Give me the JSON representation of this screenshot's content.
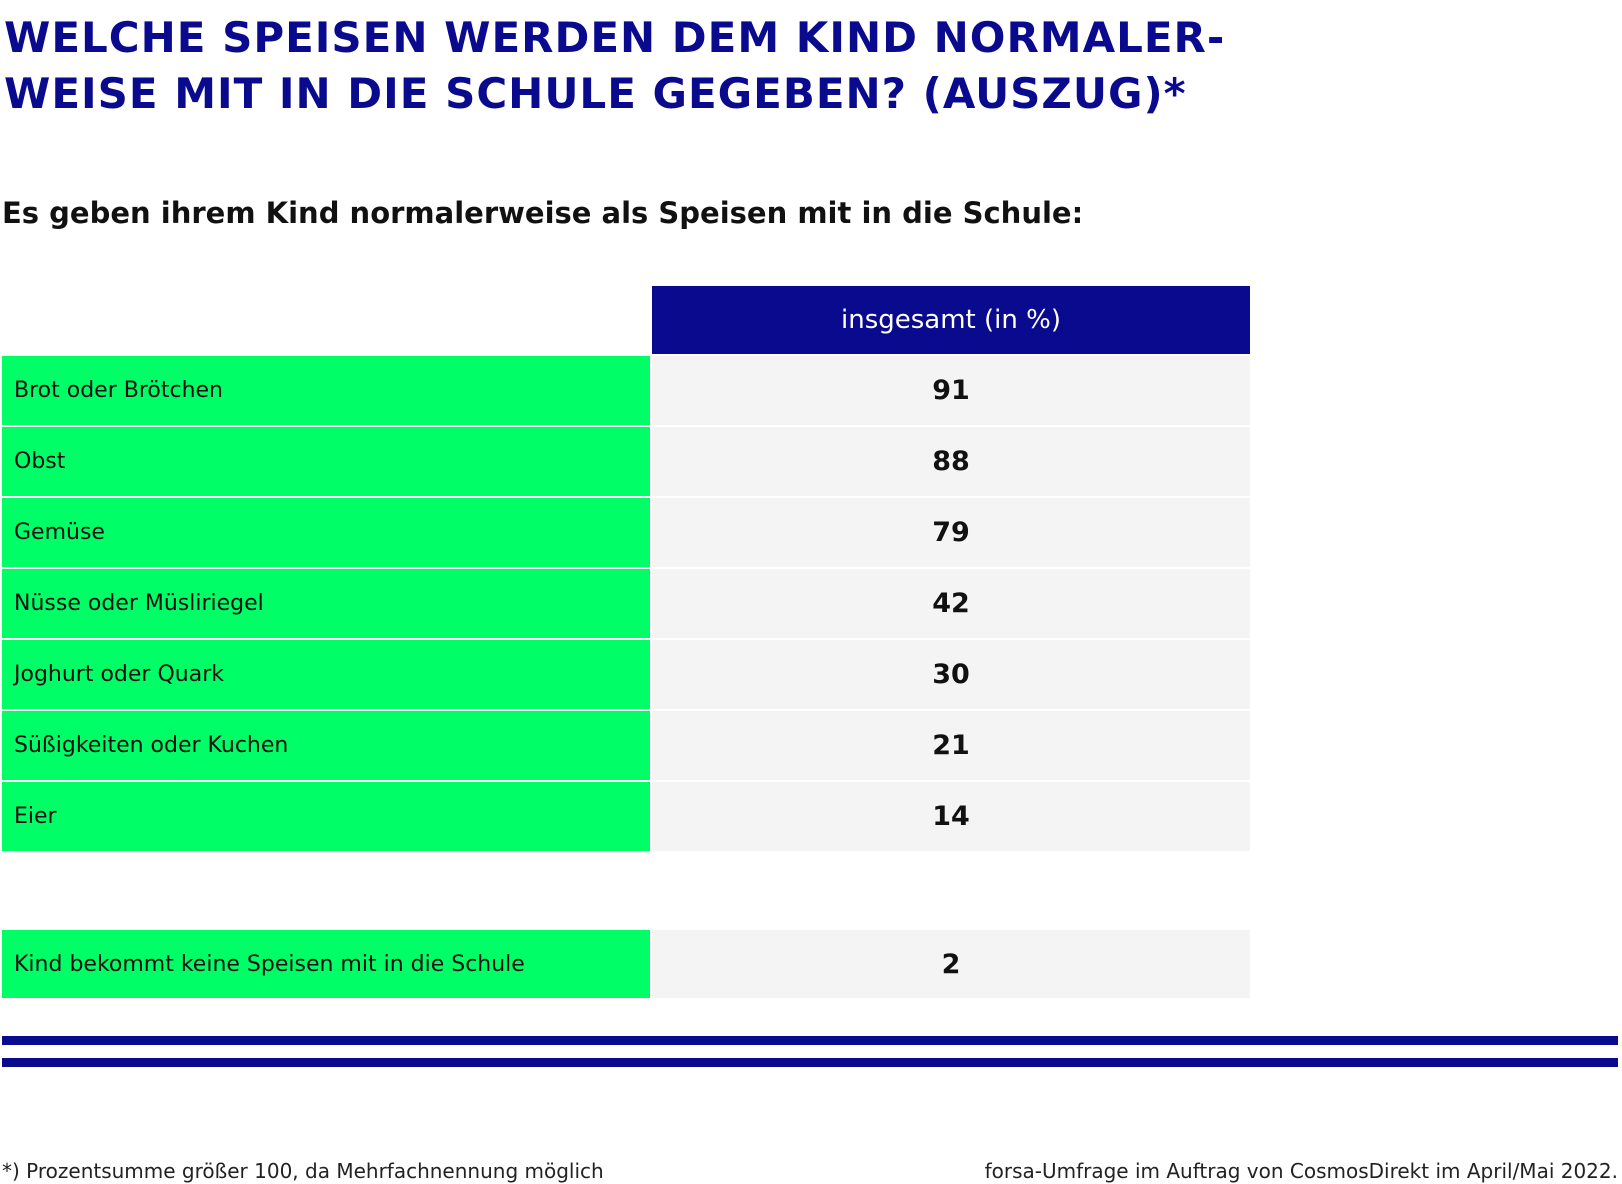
{
  "colors": {
    "title": "#0a0a8e",
    "header_bg": "#0a0a8e",
    "label_bg": "#00ff66",
    "value_bg": "#f4f4f4",
    "rule": "#0a0a8e"
  },
  "title": "WELCHE SPEISEN WERDEN DEM KIND NORMALER-\nWEISE MIT IN DIE SCHULE GEGEBEN? (AUSZUG)*",
  "subtitle": "Es geben ihrem Kind normalerweise als Speisen mit in die Schule:",
  "table": {
    "column_header": "insgesamt (in %)"
  },
  "chart_data": {
    "type": "table",
    "title": "WELCHE SPEISEN WERDEN DEM KIND NORMALERWEISE MIT IN DIE SCHULE GEGEBEN? (AUSZUG)*",
    "columns": [
      "insgesamt (in %)"
    ],
    "rows": [
      {
        "label": "Brot oder Brötchen",
        "value": 91
      },
      {
        "label": "Obst",
        "value": 88
      },
      {
        "label": "Gemüse",
        "value": 79
      },
      {
        "label": "Nüsse oder Müsliriegel",
        "value": 42
      },
      {
        "label": "Joghurt oder Quark",
        "value": 30
      },
      {
        "label": "Süßigkeiten oder Kuchen",
        "value": 21
      },
      {
        "label": "Eier",
        "value": 14
      }
    ],
    "extra_row": {
      "label": "Kind bekommt keine Speisen mit in die Schule",
      "value": 2
    }
  },
  "footnote": "*) Prozentsumme größer 100, da Mehrfachnennung möglich",
  "source": "forsa-Umfrage im Auftrag von CosmosDirekt im April/Mai 2022."
}
